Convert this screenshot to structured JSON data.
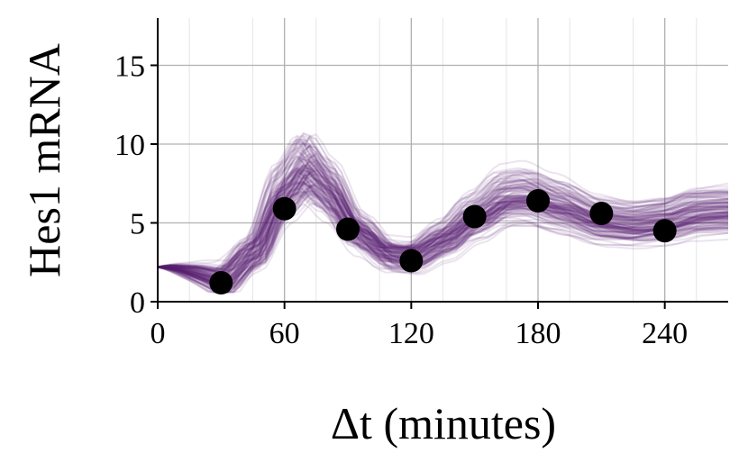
{
  "chart_data": {
    "type": "scatter",
    "xlabel": "Δt (minutes)",
    "ylabel": "Hes1 mRNA",
    "xlim": [
      0,
      270
    ],
    "ylim": [
      0,
      18
    ],
    "xticks": [
      0,
      60,
      120,
      180,
      240
    ],
    "yticks": [
      0,
      5,
      10,
      15
    ],
    "grid": true,
    "colors": {
      "trajectories": "#5b1e74",
      "points": "#000000",
      "grid": "#b0b0b0"
    },
    "series": [
      {
        "kind": "scatter",
        "x": [
          30,
          60,
          90,
          120,
          150,
          180,
          210,
          240
        ],
        "y": [
          1.2,
          5.9,
          4.6,
          2.6,
          5.4,
          6.4,
          5.6,
          4.5
        ]
      },
      {
        "kind": "line-ensemble",
        "description": "many semi-transparent sampled trajectories",
        "mean_curve": {
          "x": [
            0,
            15,
            30,
            45,
            60,
            70,
            80,
            95,
            110,
            120,
            135,
            150,
            165,
            175,
            190,
            210,
            225,
            240,
            255,
            270
          ],
          "y": [
            2.2,
            1.6,
            1.3,
            3.0,
            6.8,
            8.3,
            7.0,
            4.3,
            2.9,
            2.8,
            3.8,
            5.2,
            6.4,
            6.5,
            5.9,
            5.0,
            4.8,
            5.0,
            5.5,
            5.6
          ]
        }
      }
    ]
  }
}
